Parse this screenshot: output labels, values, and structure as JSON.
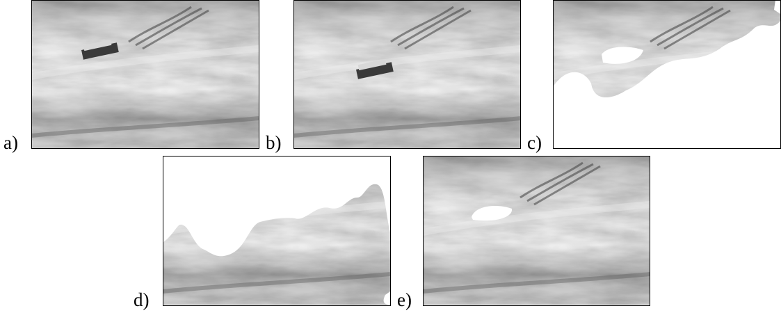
{
  "panels": [
    {
      "label": "a)"
    },
    {
      "label": "b)"
    },
    {
      "label": "c)"
    },
    {
      "label": "d)"
    },
    {
      "label": "e)"
    }
  ]
}
